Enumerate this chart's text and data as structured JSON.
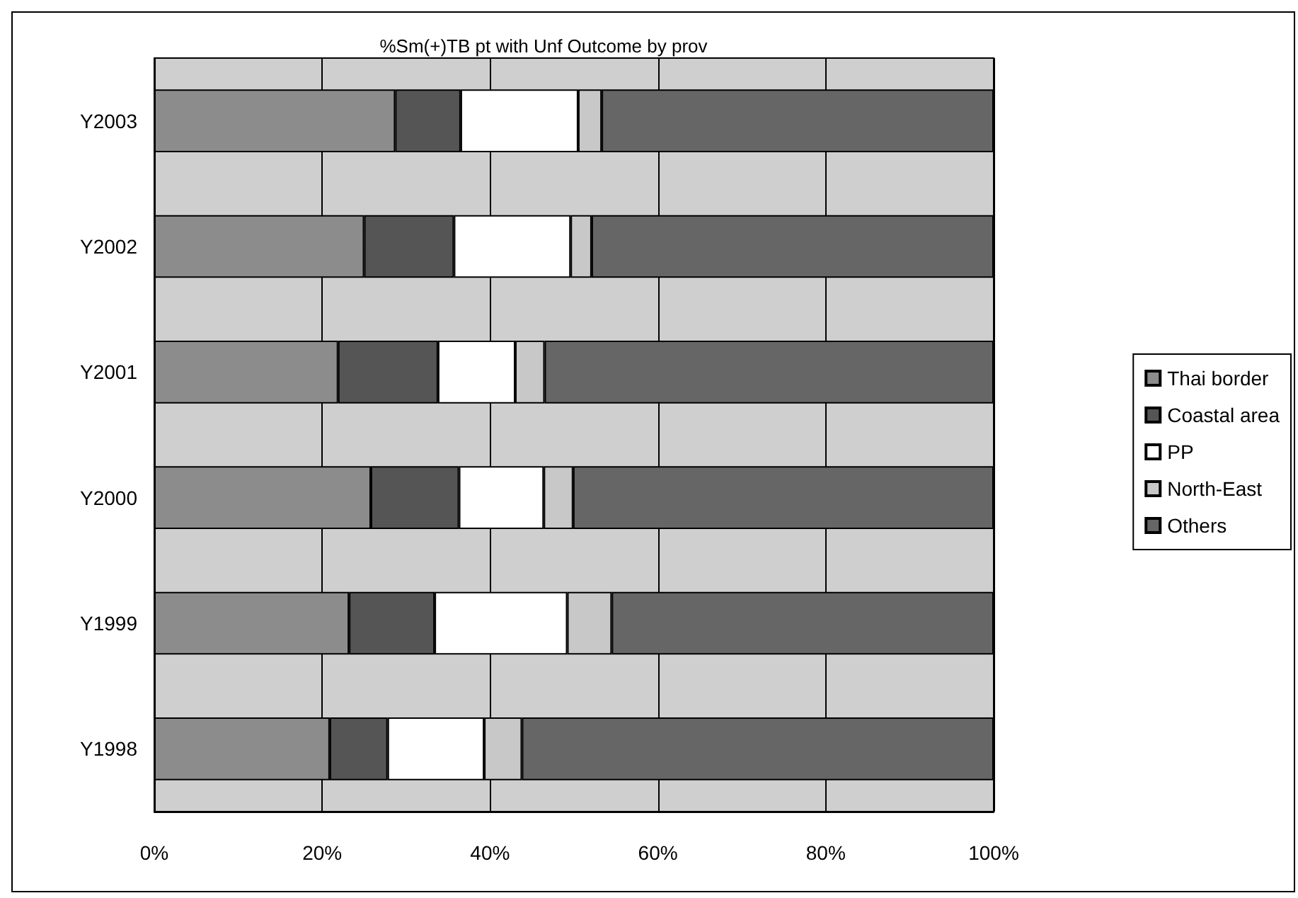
{
  "chart_data": {
    "type": "bar",
    "orientation": "horizontal",
    "stacked": true,
    "title": "%Sm(+)TB pt with Unf Outcome by prov",
    "categories": [
      "Y2003",
      "Y2002",
      "Y2001",
      "Y2000",
      "Y1999",
      "Y1998"
    ],
    "series": [
      {
        "name": "Thai border",
        "color": "#8c8c8c",
        "values": [
          28.7,
          25.0,
          21.9,
          25.8,
          23.2,
          20.9
        ]
      },
      {
        "name": "Coastal area",
        "color": "#555555",
        "values": [
          7.8,
          10.7,
          11.9,
          10.5,
          10.2,
          6.9
        ]
      },
      {
        "name": "PP",
        "color": "#ffffff",
        "values": [
          14.0,
          13.9,
          9.2,
          10.1,
          15.8,
          11.5
        ]
      },
      {
        "name": "North-East",
        "color": "#c8c8c8",
        "values": [
          2.8,
          2.5,
          3.5,
          3.5,
          5.3,
          4.5
        ]
      },
      {
        "name": "Others",
        "color": "#666666",
        "values": [
          46.7,
          47.9,
          53.5,
          50.1,
          45.5,
          56.2
        ]
      }
    ],
    "xlim": [
      0,
      100
    ],
    "xticks": [
      {
        "value": 0,
        "label": "0%"
      },
      {
        "value": 20,
        "label": "20%"
      },
      {
        "value": 40,
        "label": "40%"
      },
      {
        "value": 60,
        "label": "60%"
      },
      {
        "value": 80,
        "label": "80%"
      },
      {
        "value": 100,
        "label": "100%"
      }
    ],
    "grid": "x",
    "legend": "right"
  }
}
